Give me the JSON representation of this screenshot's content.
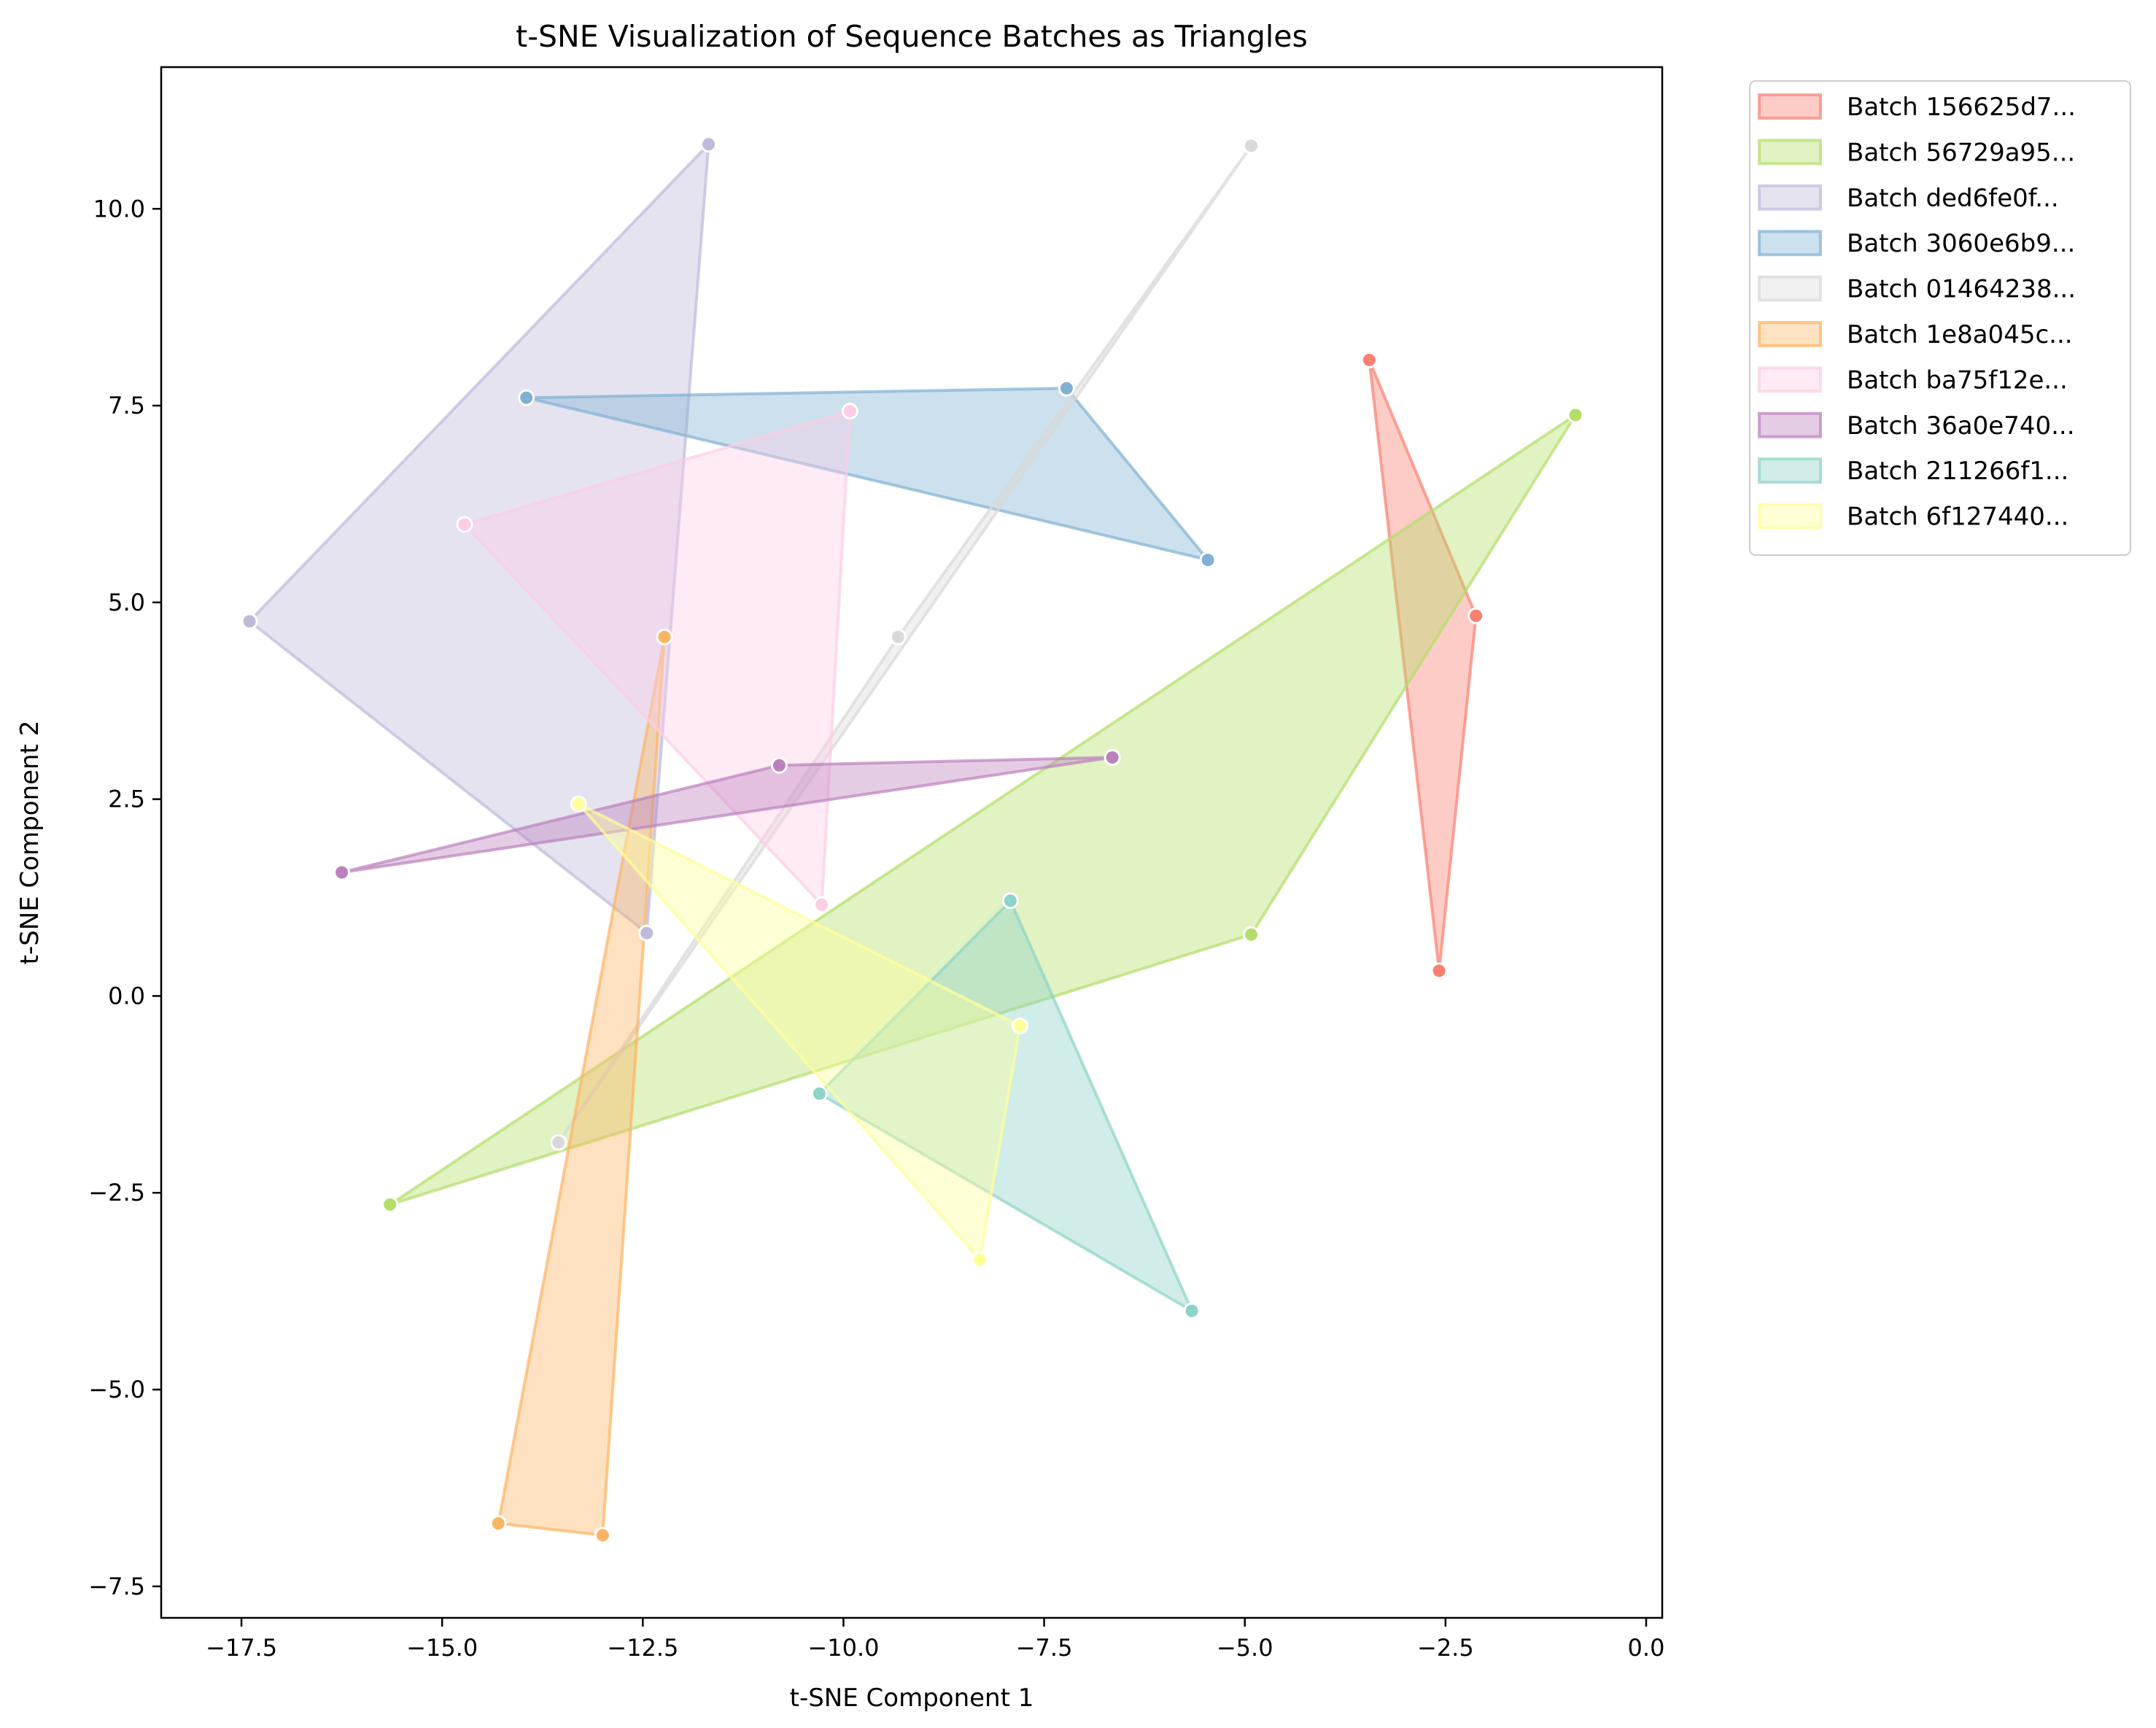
{
  "chart_data": {
    "type": "scatter",
    "title": "t-SNE Visualization of Sequence Batches as Triangles",
    "xlabel": "t-SNE Component 1",
    "ylabel": "t-SNE Component 2",
    "xlim": [
      -18.5,
      0.2
    ],
    "ylim": [
      -7.9,
      11.8
    ],
    "xticks": [
      -17.5,
      -15.0,
      -12.5,
      -10.0,
      -7.5,
      -5.0,
      -2.5,
      0.0
    ],
    "xtick_labels": [
      "−17.5",
      "−15.0",
      "−12.5",
      "−10.0",
      "−7.5",
      "−5.0",
      "−2.5",
      "0.0"
    ],
    "yticks": [
      -7.5,
      -5.0,
      -2.5,
      0.0,
      2.5,
      5.0,
      7.5,
      10.0
    ],
    "ytick_labels": [
      "−7.5",
      "−5.0",
      "−2.5",
      "0.0",
      "2.5",
      "5.0",
      "7.5",
      "10.0"
    ],
    "grid": false,
    "legend_position": "outside-top-right",
    "series": [
      {
        "name": "Batch 156625d7...",
        "color": "#fb8072",
        "points": [
          [
            -3.45,
            8.08
          ],
          [
            -2.12,
            4.83
          ],
          [
            -2.58,
            0.32
          ]
        ]
      },
      {
        "name": "Batch 56729a95...",
        "color": "#b3de69",
        "points": [
          [
            -0.88,
            7.38
          ],
          [
            -4.92,
            0.78
          ],
          [
            -15.65,
            -2.65
          ]
        ]
      },
      {
        "name": "Batch ded6fe0f...",
        "color": "#bebada",
        "points": [
          [
            -11.68,
            10.82
          ],
          [
            -17.4,
            4.76
          ],
          [
            -12.45,
            0.8
          ]
        ]
      },
      {
        "name": "Batch 3060e6b9...",
        "color": "#80b1d3",
        "points": [
          [
            -7.22,
            7.72
          ],
          [
            -13.95,
            7.6
          ],
          [
            -5.46,
            5.54
          ]
        ]
      },
      {
        "name": "Batch 01464238...",
        "color": "#d9d9d9",
        "points": [
          [
            -4.92,
            10.8
          ],
          [
            -9.32,
            4.56
          ],
          [
            -13.55,
            -1.86
          ]
        ]
      },
      {
        "name": "Batch 1e8a045c...",
        "color": "#fdb462",
        "points": [
          [
            -12.23,
            4.56
          ],
          [
            -14.3,
            -6.7
          ],
          [
            -13.0,
            -6.85
          ]
        ]
      },
      {
        "name": "Batch ba75f12e...",
        "color": "#fccde5",
        "points": [
          [
            -9.92,
            7.43
          ],
          [
            -14.72,
            5.99
          ],
          [
            -10.27,
            1.16
          ]
        ]
      },
      {
        "name": "Batch 36a0e740...",
        "color": "#bc80bd",
        "points": [
          [
            -6.65,
            3.03
          ],
          [
            -10.8,
            2.93
          ],
          [
            -16.25,
            1.57
          ]
        ]
      },
      {
        "name": "Batch 211266f1...",
        "color": "#8dd3c7",
        "points": [
          [
            -7.92,
            1.21
          ],
          [
            -10.3,
            -1.24
          ],
          [
            -5.66,
            -4.0
          ]
        ]
      },
      {
        "name": "Batch 6f127440...",
        "color": "#ffff99",
        "points": [
          [
            -13.3,
            2.44
          ],
          [
            -7.8,
            -0.38
          ],
          [
            -8.3,
            -3.35
          ]
        ]
      }
    ]
  }
}
